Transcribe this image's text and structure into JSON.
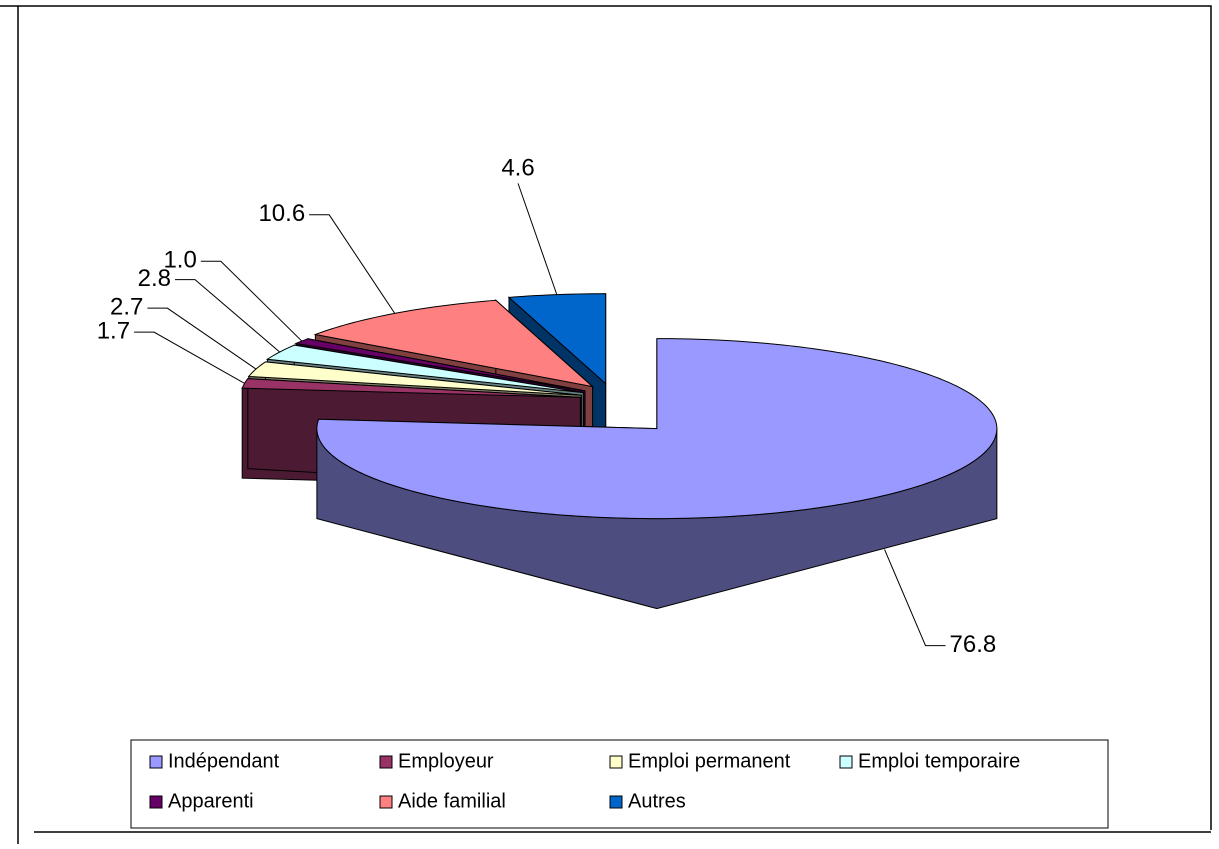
{
  "chart_data": {
    "type": "pie3d",
    "categories": [
      "Indépendant",
      "Employeur",
      "Emploi permanent",
      "Emploi temporaire",
      "Apparenti",
      "Aide familial",
      "Autres"
    ],
    "values": [
      76.8,
      1.7,
      2.7,
      2.8,
      1.0,
      10.6,
      4.6
    ],
    "value_labels": [
      "76.8",
      "1.7",
      "2.7",
      "2.8",
      "1.0",
      "10.6",
      "4.6"
    ],
    "colors": [
      "#9999ff",
      "#993366",
      "#ffffcc",
      "#ccffff",
      "#660066",
      "#ff8080",
      "#0066cc"
    ],
    "legend": "bottom"
  }
}
